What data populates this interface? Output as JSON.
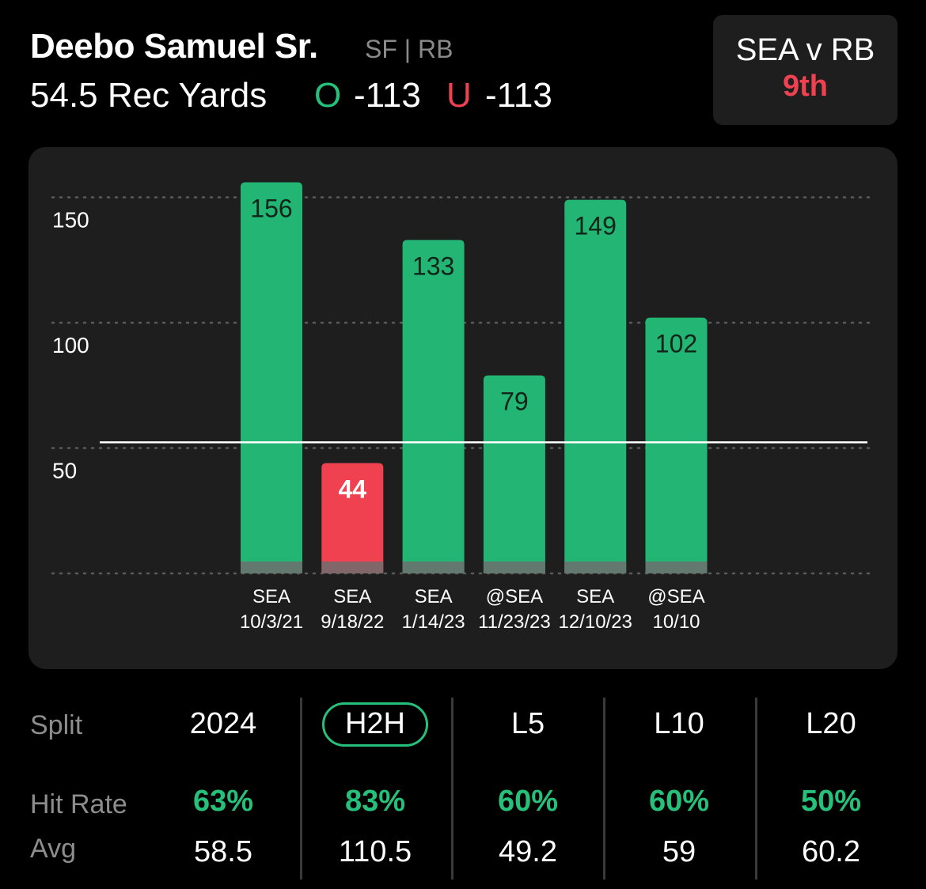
{
  "player": {
    "name": "Deebo Samuel Sr.",
    "team_pos": "SF | RB",
    "line": "54.5 Rec Yards",
    "over_label": "O",
    "over_odds": "-113",
    "under_label": "U",
    "under_odds": "-113"
  },
  "matchup": {
    "title": "SEA v RB",
    "rank": "9th"
  },
  "colors": {
    "over": "#27c07a",
    "under": "#ef4150",
    "bar_hit": "#22b574",
    "bar_miss": "#ef4150"
  },
  "chart_data": {
    "type": "bar",
    "categories": [
      "SEA 10/3/21",
      "SEA 9/18/22",
      "SEA 1/14/23",
      "@SEA 11/23/23",
      "SEA 12/10/23",
      "@SEA 10/10"
    ],
    "category_lines": [
      [
        "SEA",
        "10/3/21"
      ],
      [
        "SEA",
        "9/18/22"
      ],
      [
        "SEA",
        "1/14/23"
      ],
      [
        "@SEA",
        "11/23/23"
      ],
      [
        "SEA",
        "12/10/23"
      ],
      [
        "@SEA",
        "10/10"
      ]
    ],
    "values": [
      156,
      44,
      133,
      79,
      149,
      102
    ],
    "value_labels": [
      "156",
      "44",
      "133",
      "79",
      "149",
      "102"
    ],
    "line_value": 54.5,
    "ylim": [
      0,
      160
    ],
    "yticks": [
      50,
      100,
      150
    ],
    "ytick_labels": [
      "50",
      "100",
      "150"
    ],
    "grid": true
  },
  "splits": {
    "label_split": "Split",
    "label_hit": "Hit Rate",
    "label_avg": "Avg",
    "columns": [
      {
        "name": "2024",
        "hit": "63%",
        "avg": "58.5"
      },
      {
        "name": "H2H",
        "hit": "83%",
        "avg": "110.5"
      },
      {
        "name": "L5",
        "hit": "60%",
        "avg": "49.2"
      },
      {
        "name": "L10",
        "hit": "60%",
        "avg": "59"
      },
      {
        "name": "L20",
        "hit": "50%",
        "avg": "60.2"
      }
    ],
    "selected": "H2H"
  }
}
